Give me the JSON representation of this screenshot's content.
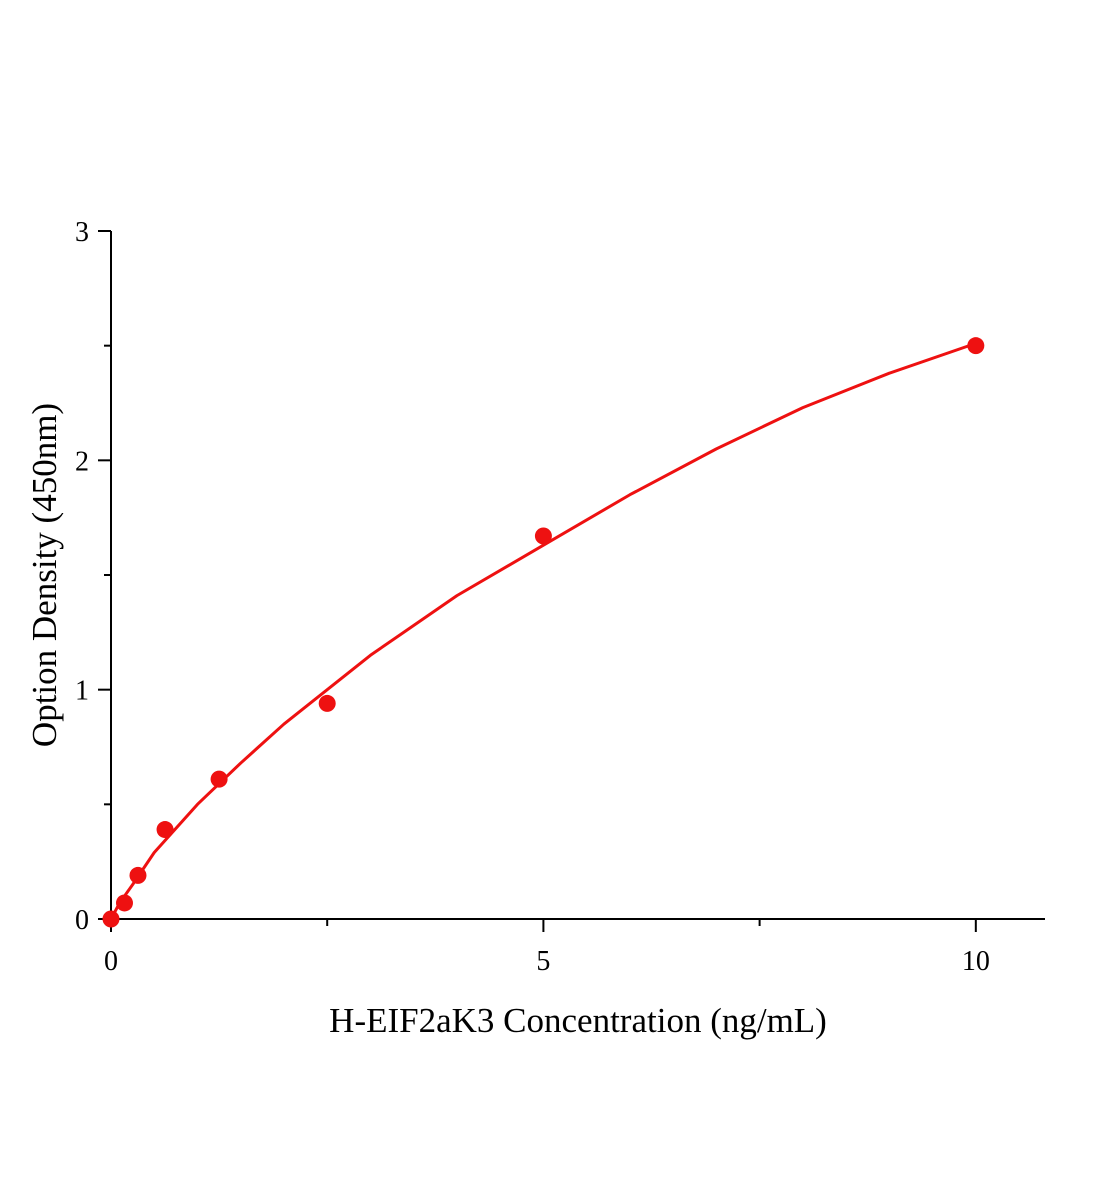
{
  "chart_data": {
    "type": "scatter",
    "x_label": "H-EIF2aK3 Concentration (ng/mL)",
    "y_label": "Option Density (450nm)",
    "x": [
      0,
      0.156,
      0.312,
      0.625,
      1.25,
      2.5,
      5,
      10
    ],
    "values": [
      0,
      0.07,
      0.19,
      0.39,
      0.61,
      0.94,
      1.67,
      2.5
    ],
    "color": "#ee1111",
    "fit": {
      "x": [
        0,
        0.1,
        0.25,
        0.5,
        1,
        1.5,
        2,
        3,
        4,
        5,
        6,
        7,
        8,
        9,
        10
      ],
      "values": [
        0,
        0.07,
        0.15,
        0.29,
        0.5,
        0.68,
        0.85,
        1.15,
        1.41,
        1.63,
        1.85,
        2.05,
        2.23,
        2.38,
        2.51
      ]
    },
    "xlim": [
      0,
      10.8
    ],
    "ylim": [
      0,
      3
    ],
    "xticks": [
      0,
      5,
      10
    ],
    "yticks": [
      0,
      1,
      2,
      3
    ],
    "xminorticks": [
      2.5,
      7.5
    ],
    "yminorticks": [
      0.5,
      1.5,
      2.5
    ],
    "grid": false
  }
}
